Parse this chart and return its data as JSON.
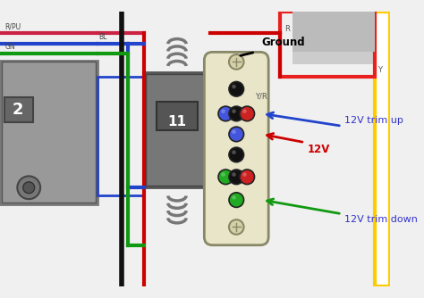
{
  "bg_color": "#f0f0f0",
  "wire_labels": {
    "R_PU": "R/PU",
    "BL": "BL",
    "GN": "GN",
    "R": "R",
    "Y_R": "Y/R",
    "Y": "Y"
  },
  "connector_label": "11",
  "box2_label": "2",
  "annotations": {
    "ground": "Ground",
    "12v": "12V",
    "trim_up": "12V trim up",
    "trim_down": "12V trim down"
  },
  "colors": {
    "red": "#e82020",
    "blue": "#4169e1",
    "green": "#22aa22",
    "black": "#111111",
    "gray": "#888888",
    "dark_gray": "#555555",
    "light_gray": "#cccccc",
    "connector_bg": "#e8e5c8",
    "yellow": "#ffcc00",
    "annotation_blue": "#3333cc",
    "wire_red": "#cc0000",
    "wire_blue": "#2244cc",
    "wire_green": "#119911",
    "wire_rpu": "#cc2244"
  }
}
